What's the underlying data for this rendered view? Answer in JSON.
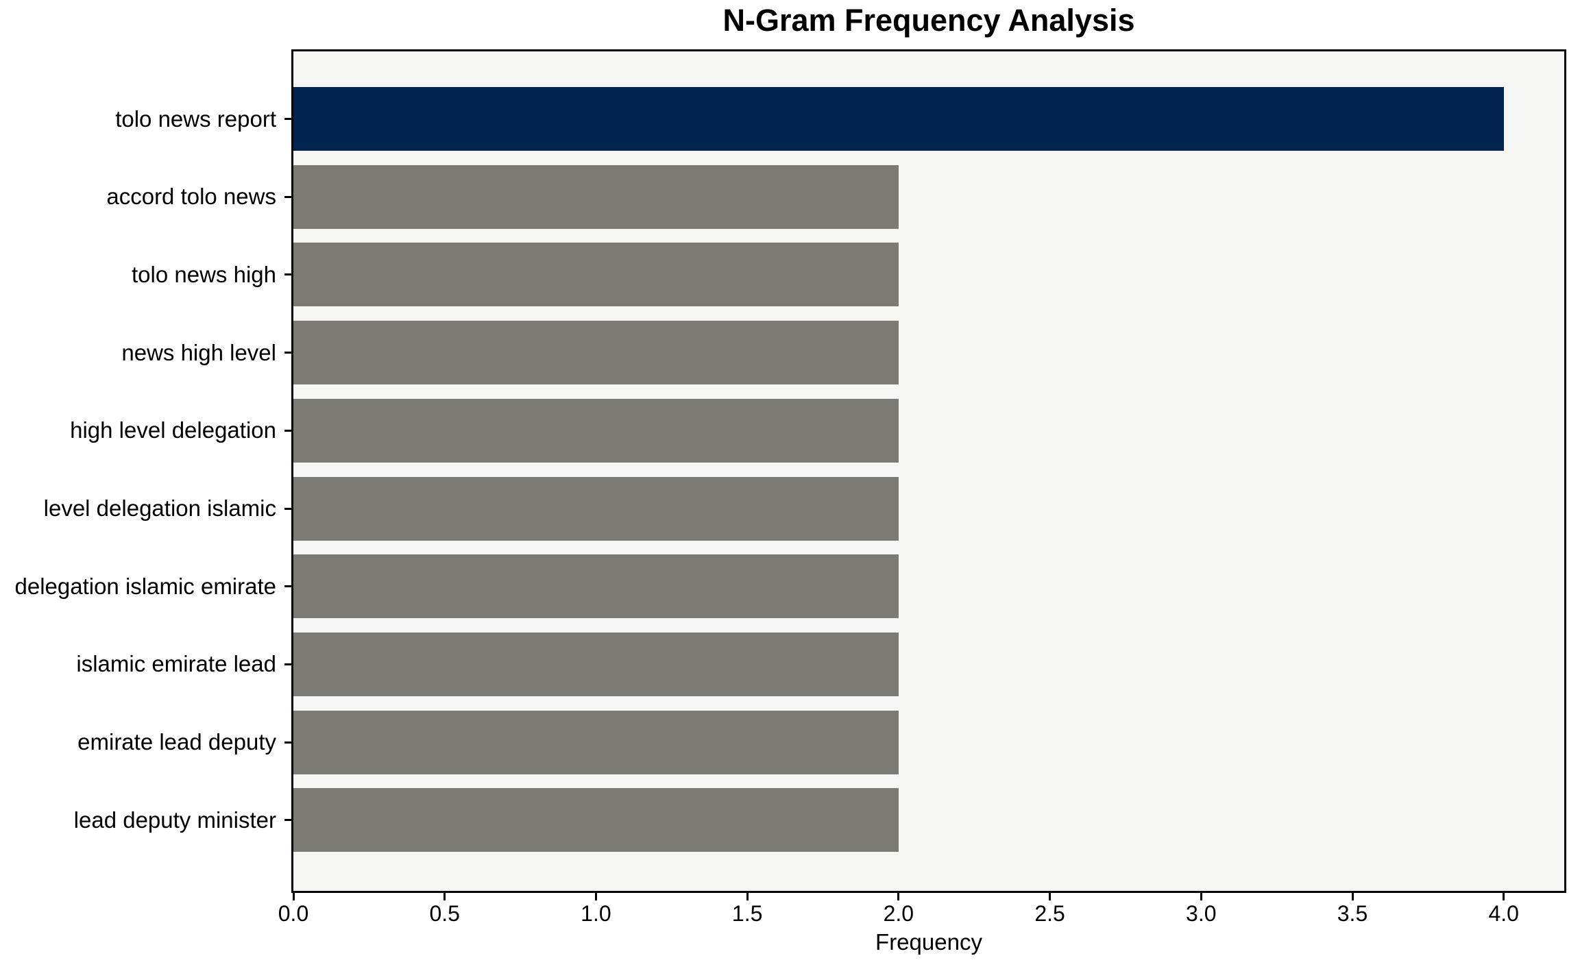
{
  "chart_data": {
    "type": "bar",
    "orientation": "horizontal",
    "title": "N-Gram Frequency Analysis",
    "xlabel": "Frequency",
    "ylabel": "",
    "categories": [
      "tolo news report",
      "accord tolo news",
      "tolo news high",
      "news high level",
      "high level delegation",
      "level delegation islamic",
      "delegation islamic emirate",
      "islamic emirate lead",
      "emirate lead deputy",
      "lead deputy minister"
    ],
    "values": [
      4,
      2,
      2,
      2,
      2,
      2,
      2,
      2,
      2,
      2
    ],
    "bar_colors": [
      "#02234d",
      "#7b7a75",
      "#7b7a75",
      "#7b7a75",
      "#7b7a75",
      "#7b7a75",
      "#7b7a75",
      "#7b7a75",
      "#7b7a75",
      "#7b7a75"
    ],
    "highlight_color": "#02234d",
    "default_color": "#7b7a75",
    "plot_background": "#f5f5f4",
    "xlim": [
      0,
      4.2
    ],
    "xticks": [
      "0.0",
      "0.5",
      "1.0",
      "1.5",
      "2.0",
      "2.5",
      "3.0",
      "3.5",
      "4.0"
    ],
    "grid": false,
    "legend_position": "none"
  }
}
